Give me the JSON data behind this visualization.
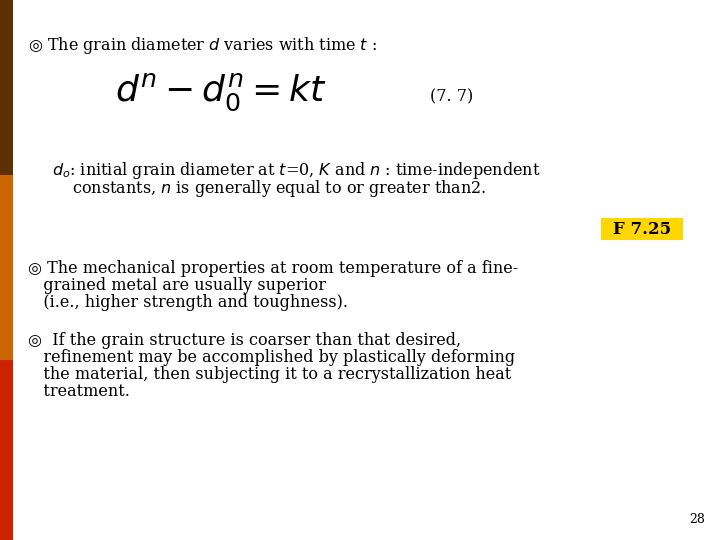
{
  "bg_color": "#ffffff",
  "bar_top_color": "#5C3000",
  "bar_mid_color": "#CC6600",
  "bar_bot_color": "#CC2200",
  "title_text": "◎ The grain diameter $d$ varies with time $t$ :",
  "formula": "$d^{n} - d_0^{n} = kt$",
  "formula_number": "(7. 7)",
  "note_line1": "$d_o$: initial grain diameter at $t$=0, $K$ and $n$ : time-independent",
  "note_line2": "    constants, $n$ is generally equal to or greater than2.",
  "badge_text": "F 7.25",
  "badge_bg": "#FFD700",
  "badge_text_color": "#000000",
  "bullet2_line1": "◎ The mechanical properties at room temperature of a fine-",
  "bullet2_line2": "   grained metal are usually superior",
  "bullet2_line3": "   (i.e., higher strength and toughness).",
  "bullet3_line1": "◎  If the grain structure is coarser than that desired,",
  "bullet3_line2": "   refinement may be accomplished by plastically deforming",
  "bullet3_line3": "   the material, then subjecting it to a recrystallization heat",
  "bullet3_line4": "   treatment.",
  "page_num": "28",
  "text_color": "#000000",
  "font_size_main": 11.5,
  "font_size_formula": 26,
  "font_size_eq_num": 11.5,
  "font_size_badge": 12,
  "font_size_page": 9
}
